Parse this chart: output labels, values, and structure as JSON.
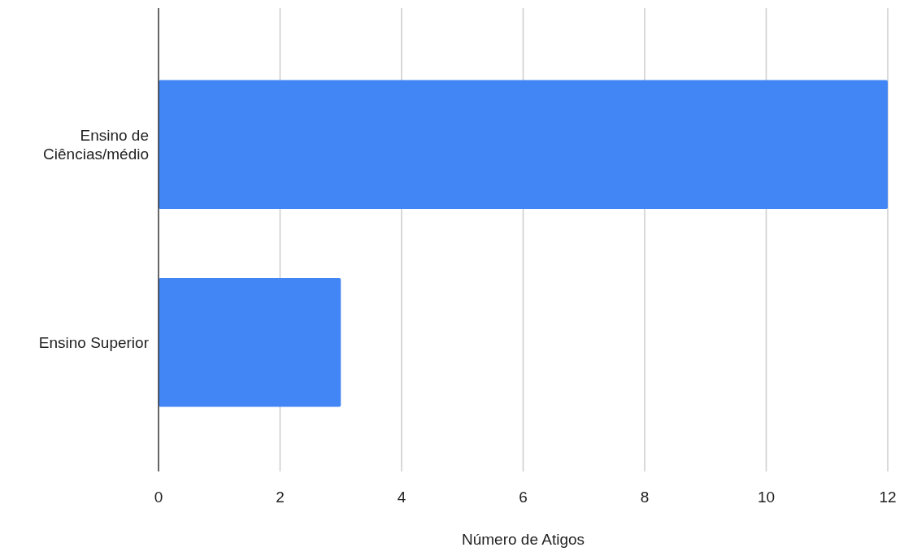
{
  "chart_data": {
    "type": "bar",
    "orientation": "horizontal",
    "categories": [
      "Ensino de Ciências/médio",
      "Ensino Superior"
    ],
    "values": [
      12,
      3
    ],
    "color": "#4285f4",
    "xlim": [
      0,
      12
    ],
    "xticks": [
      0,
      2,
      4,
      6,
      8,
      10,
      12
    ],
    "xlabel": "Número de Atigos",
    "grid": "x"
  }
}
